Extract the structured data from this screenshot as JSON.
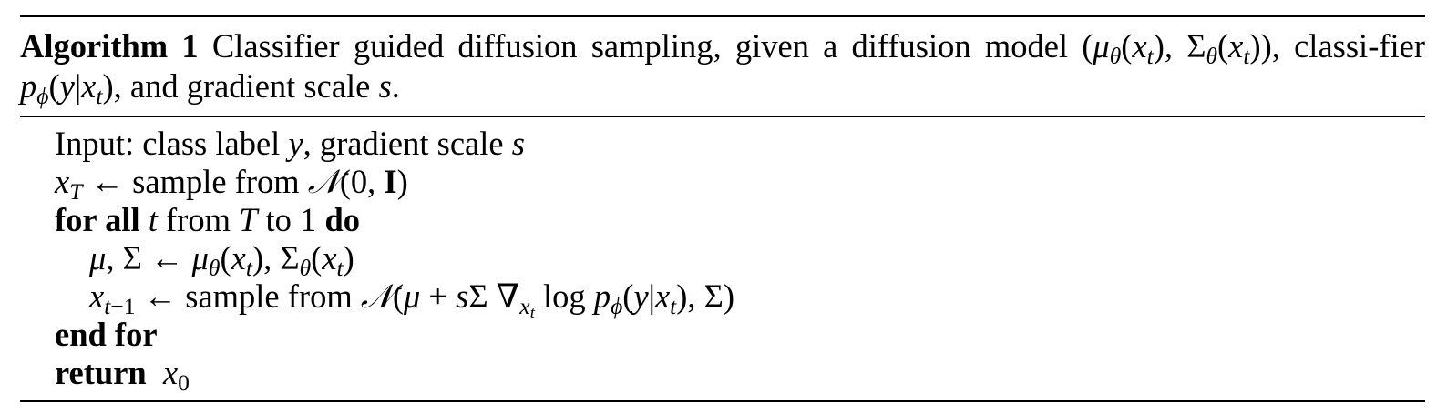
{
  "algorithm": {
    "number_label": "Algorithm 1",
    "caption_text_1": "Classifier guided diffusion sampling, given a diffusion model ",
    "caption_math_1": "(μθ(xt), Σθ(xt))",
    "caption_text_2": ", classi-fier ",
    "caption_math_2": "pϕ(y|xt)",
    "caption_text_3": ", and gradient scale ",
    "caption_math_3": "s",
    "caption_text_4": ".",
    "lines": [
      {
        "text": "Input: class label y, gradient scale s"
      },
      {
        "text": "xT ← sample from N(0, I)"
      },
      {
        "keyword_1": "for all",
        "text": " t from T to 1 ",
        "keyword_2": "do"
      },
      {
        "text": "μ, Σ ← μθ(xt), Σθ(xt)"
      },
      {
        "text": "xt−1 ← sample from N(μ + sΣ ∇xt log pϕ(y|xt), Σ)"
      },
      {
        "keyword_1": "end for"
      },
      {
        "keyword_1": "return",
        "text": "x0"
      }
    ]
  }
}
